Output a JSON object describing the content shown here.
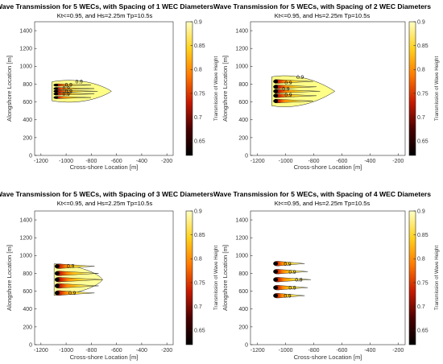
{
  "chart_data": [
    {
      "type": "contour",
      "title": "Wave Transmission for 5 WECs, with Spacing of 1 WEC Diameters",
      "subtitle": "Kt<=0.95, and Hs=2.25m Tp=10.5s",
      "xlabel": "Cross-shore Location [m]",
      "ylabel": "Alongshore Location [m]",
      "colorbar_label": "Transmission of Wave Height",
      "spacing": 1,
      "xlim": [
        -1250,
        -150
      ],
      "ylim": [
        0,
        1500
      ],
      "xticks": [
        -1200,
        -1000,
        -800,
        -600,
        -400,
        -200
      ],
      "yticks": [
        0,
        200,
        400,
        600,
        800,
        1000,
        1200,
        1400
      ],
      "clim": [
        0.62,
        0.9
      ],
      "cticks": [
        0.65,
        0.7,
        0.75,
        0.8,
        0.85,
        0.9
      ],
      "wec_x": -1080,
      "wec_y": [
        650,
        690,
        720,
        750,
        790
      ],
      "tail_length": 440,
      "contour_labels": [
        "0.9",
        "0.9",
        "0.9",
        "0.9",
        "0.9"
      ]
    },
    {
      "type": "contour",
      "title": "Wave Transmission for 5 WECs, with Spacing of 2 WEC Diameters",
      "subtitle": "Kt<=0.95, and Hs=2.25m Tp=10.5s",
      "xlabel": "Cross-shore Location [m]",
      "ylabel": "Alongshore Location [m]",
      "colorbar_label": "Transmission of Wave Height",
      "spacing": 2,
      "xlim": [
        -1250,
        -150
      ],
      "ylim": [
        0,
        1500
      ],
      "xticks": [
        -1200,
        -1000,
        -800,
        -600,
        -400,
        -200
      ],
      "yticks": [
        0,
        200,
        400,
        600,
        800,
        1000,
        1200,
        1400
      ],
      "clim": [
        0.62,
        0.9
      ],
      "cticks": [
        0.65,
        0.7,
        0.75,
        0.8,
        0.85,
        0.9
      ],
      "wec_x": -1070,
      "wec_y": [
        610,
        670,
        720,
        770,
        830
      ],
      "tail_length": 420,
      "contour_labels": [
        "0.9",
        "0.9",
        "0.9",
        "0.9"
      ]
    },
    {
      "type": "contour",
      "title": "Wave Transmission for 5 WECs, with Spacing of 3 WEC Diameters",
      "subtitle": "Kt<=0.95, and Hs=2.25m Tp=10.5s",
      "xlabel": "Cross-shore Location [m]",
      "ylabel": "Alongshore Location [m]",
      "colorbar_label": "Transmission of Wave Height",
      "spacing": 3,
      "xlim": [
        -1250,
        -150
      ],
      "ylim": [
        0,
        1500
      ],
      "xticks": [
        -1200,
        -1000,
        -800,
        -600,
        -400,
        -200
      ],
      "yticks": [
        0,
        200,
        400,
        600,
        800,
        1000,
        1200,
        1400
      ],
      "clim": [
        0.62,
        0.9
      ],
      "cticks": [
        0.65,
        0.7,
        0.75,
        0.8,
        0.85,
        0.9
      ],
      "wec_x": -1070,
      "wec_y": [
        580,
        660,
        730,
        800,
        880
      ],
      "tail_length": 360,
      "contour_labels": [
        "0.9",
        "0.9"
      ]
    },
    {
      "type": "contour",
      "title": "Wave Transmission for 5 WECs, with Spacing of 4 WEC Diameters",
      "subtitle": "Kt<=0.95, and Hs=2.25m Tp=10.5s",
      "xlabel": "Cross-shore Location [m]",
      "ylabel": "Alongshore Location [m]",
      "colorbar_label": "Transmission of Wave Height",
      "spacing": 4,
      "xlim": [
        -1250,
        -150
      ],
      "ylim": [
        0,
        1500
      ],
      "xticks": [
        -1200,
        -1000,
        -800,
        -600,
        -400,
        -200
      ],
      "yticks": [
        0,
        200,
        400,
        600,
        800,
        1000,
        1200,
        1400
      ],
      "clim": [
        0.62,
        0.9
      ],
      "cticks": [
        0.65,
        0.7,
        0.75,
        0.8,
        0.85,
        0.9
      ],
      "wec_x": -1070,
      "wec_y": [
        550,
        640,
        730,
        820,
        910
      ],
      "tail_length": 250,
      "contour_labels": [
        "0.9",
        "0.9",
        "0.9",
        "0.9",
        "0.9"
      ]
    }
  ]
}
